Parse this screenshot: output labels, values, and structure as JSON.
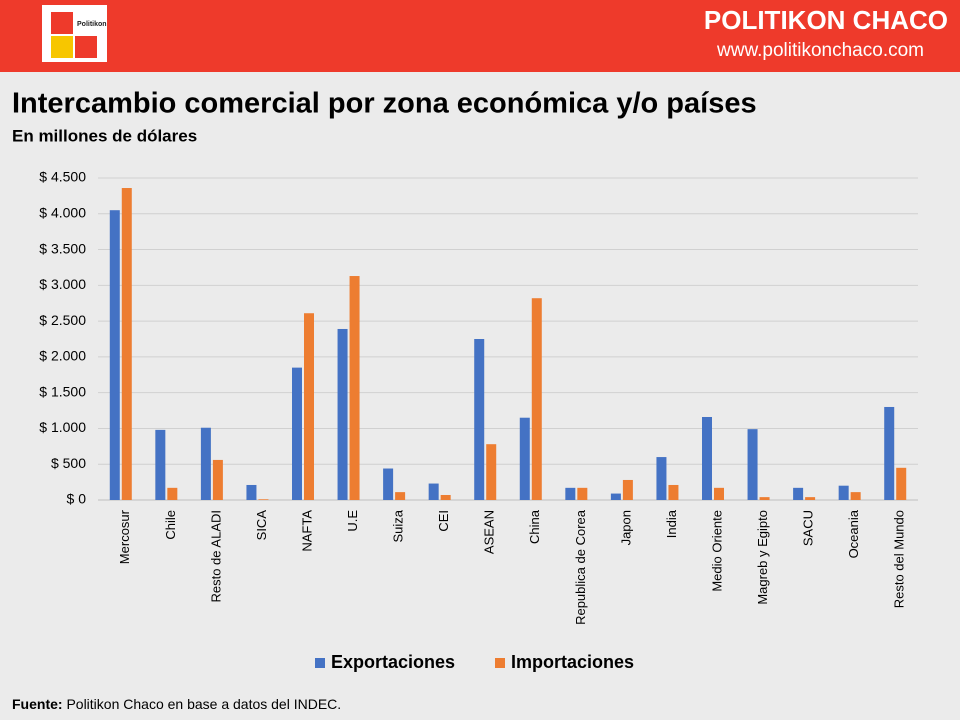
{
  "header": {
    "logo_text": "Politikon",
    "brand": "POLITIKON CHACO",
    "url": "www.politikonchaco.com"
  },
  "chart_data": {
    "type": "bar",
    "title": "Intercambio comercial por zona económica y/o países",
    "subtitle": "En millones de dólares",
    "categories": [
      "Mercosur",
      "Chile",
      "Resto de ALADI",
      "SICA",
      "NAFTA",
      "U.E",
      "Suiza",
      "CEI",
      "ASEAN",
      "China",
      "Republica de Corea",
      "Japon",
      "India",
      "Medio Oriente",
      "Magreb y Egipto",
      "SACU",
      "Oceania",
      "Resto del Mundo"
    ],
    "series": [
      {
        "name": "Exportaciones",
        "color": "#4472c4",
        "values": [
          4050,
          980,
          1010,
          210,
          1850,
          2390,
          440,
          230,
          2250,
          1150,
          170,
          90,
          600,
          1160,
          990,
          170,
          200,
          1300
        ]
      },
      {
        "name": "Importaciones",
        "color": "#ed7d31",
        "values": [
          4360,
          170,
          560,
          10,
          2610,
          3130,
          110,
          70,
          780,
          2820,
          170,
          280,
          210,
          170,
          40,
          40,
          110,
          450
        ]
      }
    ],
    "ylim": [
      0,
      4500
    ],
    "yticks": [
      {
        "value": 0,
        "label": "$ 0"
      },
      {
        "value": 500,
        "label": "$ 500"
      },
      {
        "value": 1000,
        "label": "$ 1.000"
      },
      {
        "value": 1500,
        "label": "$ 1.500"
      },
      {
        "value": 2000,
        "label": "$ 2.000"
      },
      {
        "value": 2500,
        "label": "$ 2.500"
      },
      {
        "value": 3000,
        "label": "$ 3.000"
      },
      {
        "value": 3500,
        "label": "$ 3.500"
      },
      {
        "value": 4000,
        "label": "$ 4.000"
      },
      {
        "value": 4500,
        "label": "$ 4.500"
      }
    ],
    "grid": true,
    "legend": "bottom"
  },
  "footer": {
    "source_label": "Fuente:",
    "source_text": " Politikon Chaco en base a datos del INDEC."
  }
}
